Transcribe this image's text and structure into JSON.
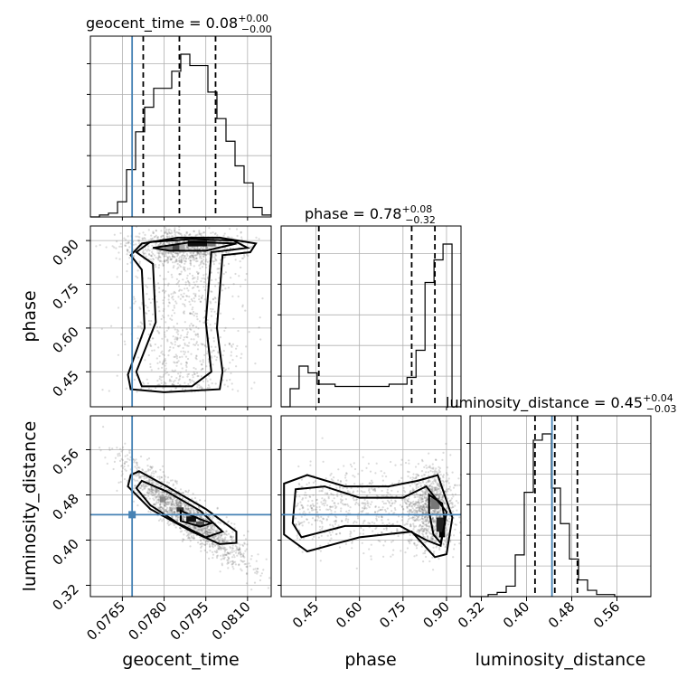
{
  "chart_data": {
    "type": "corner",
    "parameters": [
      "geocent_time",
      "phase",
      "luminosity_distance"
    ],
    "titles": [
      {
        "name": "geocent_time",
        "median": "0.08",
        "plus": "+0.00",
        "minus": "−0.00"
      },
      {
        "name": "phase",
        "median": "0.78",
        "plus": "+0.08",
        "minus": "−0.32"
      },
      {
        "name": "luminosity_distance",
        "median": "0.45",
        "plus": "+0.04",
        "minus": "−0.03"
      }
    ],
    "axes": {
      "geocent_time": {
        "range": [
          0.07535,
          0.08185
        ],
        "ticks": [
          0.0765,
          0.078,
          0.0795,
          0.081
        ],
        "tick_labels": [
          "0.0765",
          "0.0780",
          "0.0795",
          "0.0810"
        ]
      },
      "phase": {
        "range": [
          0.33,
          0.95
        ],
        "ticks": [
          0.45,
          0.6,
          0.75,
          0.9
        ],
        "tick_labels": [
          "0.45",
          "0.60",
          "0.75",
          "0.90"
        ]
      },
      "luminosity_distance": {
        "range": [
          0.3,
          0.62
        ],
        "ticks": [
          0.32,
          0.4,
          0.48,
          0.56
        ],
        "tick_labels": [
          "0.32",
          "0.40",
          "0.48",
          "0.56"
        ]
      }
    },
    "truths": {
      "geocent_time": 0.07685,
      "phase": null,
      "luminosity_distance": 0.445
    },
    "quantiles": {
      "geocent_time": [
        0.07725,
        0.07855,
        0.07985
      ],
      "phase": [
        0.46,
        0.78,
        0.86
      ],
      "luminosity_distance": [
        0.415,
        0.45,
        0.49
      ]
    },
    "histograms": {
      "geocent_time": {
        "edges_range": [
          0.07535,
          0.08185
        ],
        "bins": 20,
        "counts": [
          0,
          1,
          2,
          8,
          25,
          45,
          58,
          68,
          68,
          77,
          86,
          80,
          80,
          66,
          52,
          40,
          27,
          18,
          5,
          1
        ]
      },
      "phase": {
        "edges_range": [
          0.33,
          0.95
        ],
        "bins": 20,
        "counts": [
          0,
          8,
          18,
          15,
          10,
          10,
          9,
          9,
          9,
          9,
          9,
          9,
          10,
          10,
          13,
          25,
          55,
          65,
          72,
          0
        ]
      },
      "luminosity_distance": {
        "edges_range": [
          0.3,
          0.62
        ],
        "bins": 20,
        "counts": [
          0,
          0,
          1,
          2,
          5,
          20,
          50,
          75,
          78,
          52,
          35,
          18,
          8,
          3,
          1,
          1,
          0,
          0,
          0,
          0
        ]
      }
    },
    "grid": true,
    "xlabel": [
      "geocent_time",
      "phase",
      "luminosity_distance"
    ],
    "ylabel": [
      "",
      "phase",
      "luminosity_distance"
    ]
  }
}
